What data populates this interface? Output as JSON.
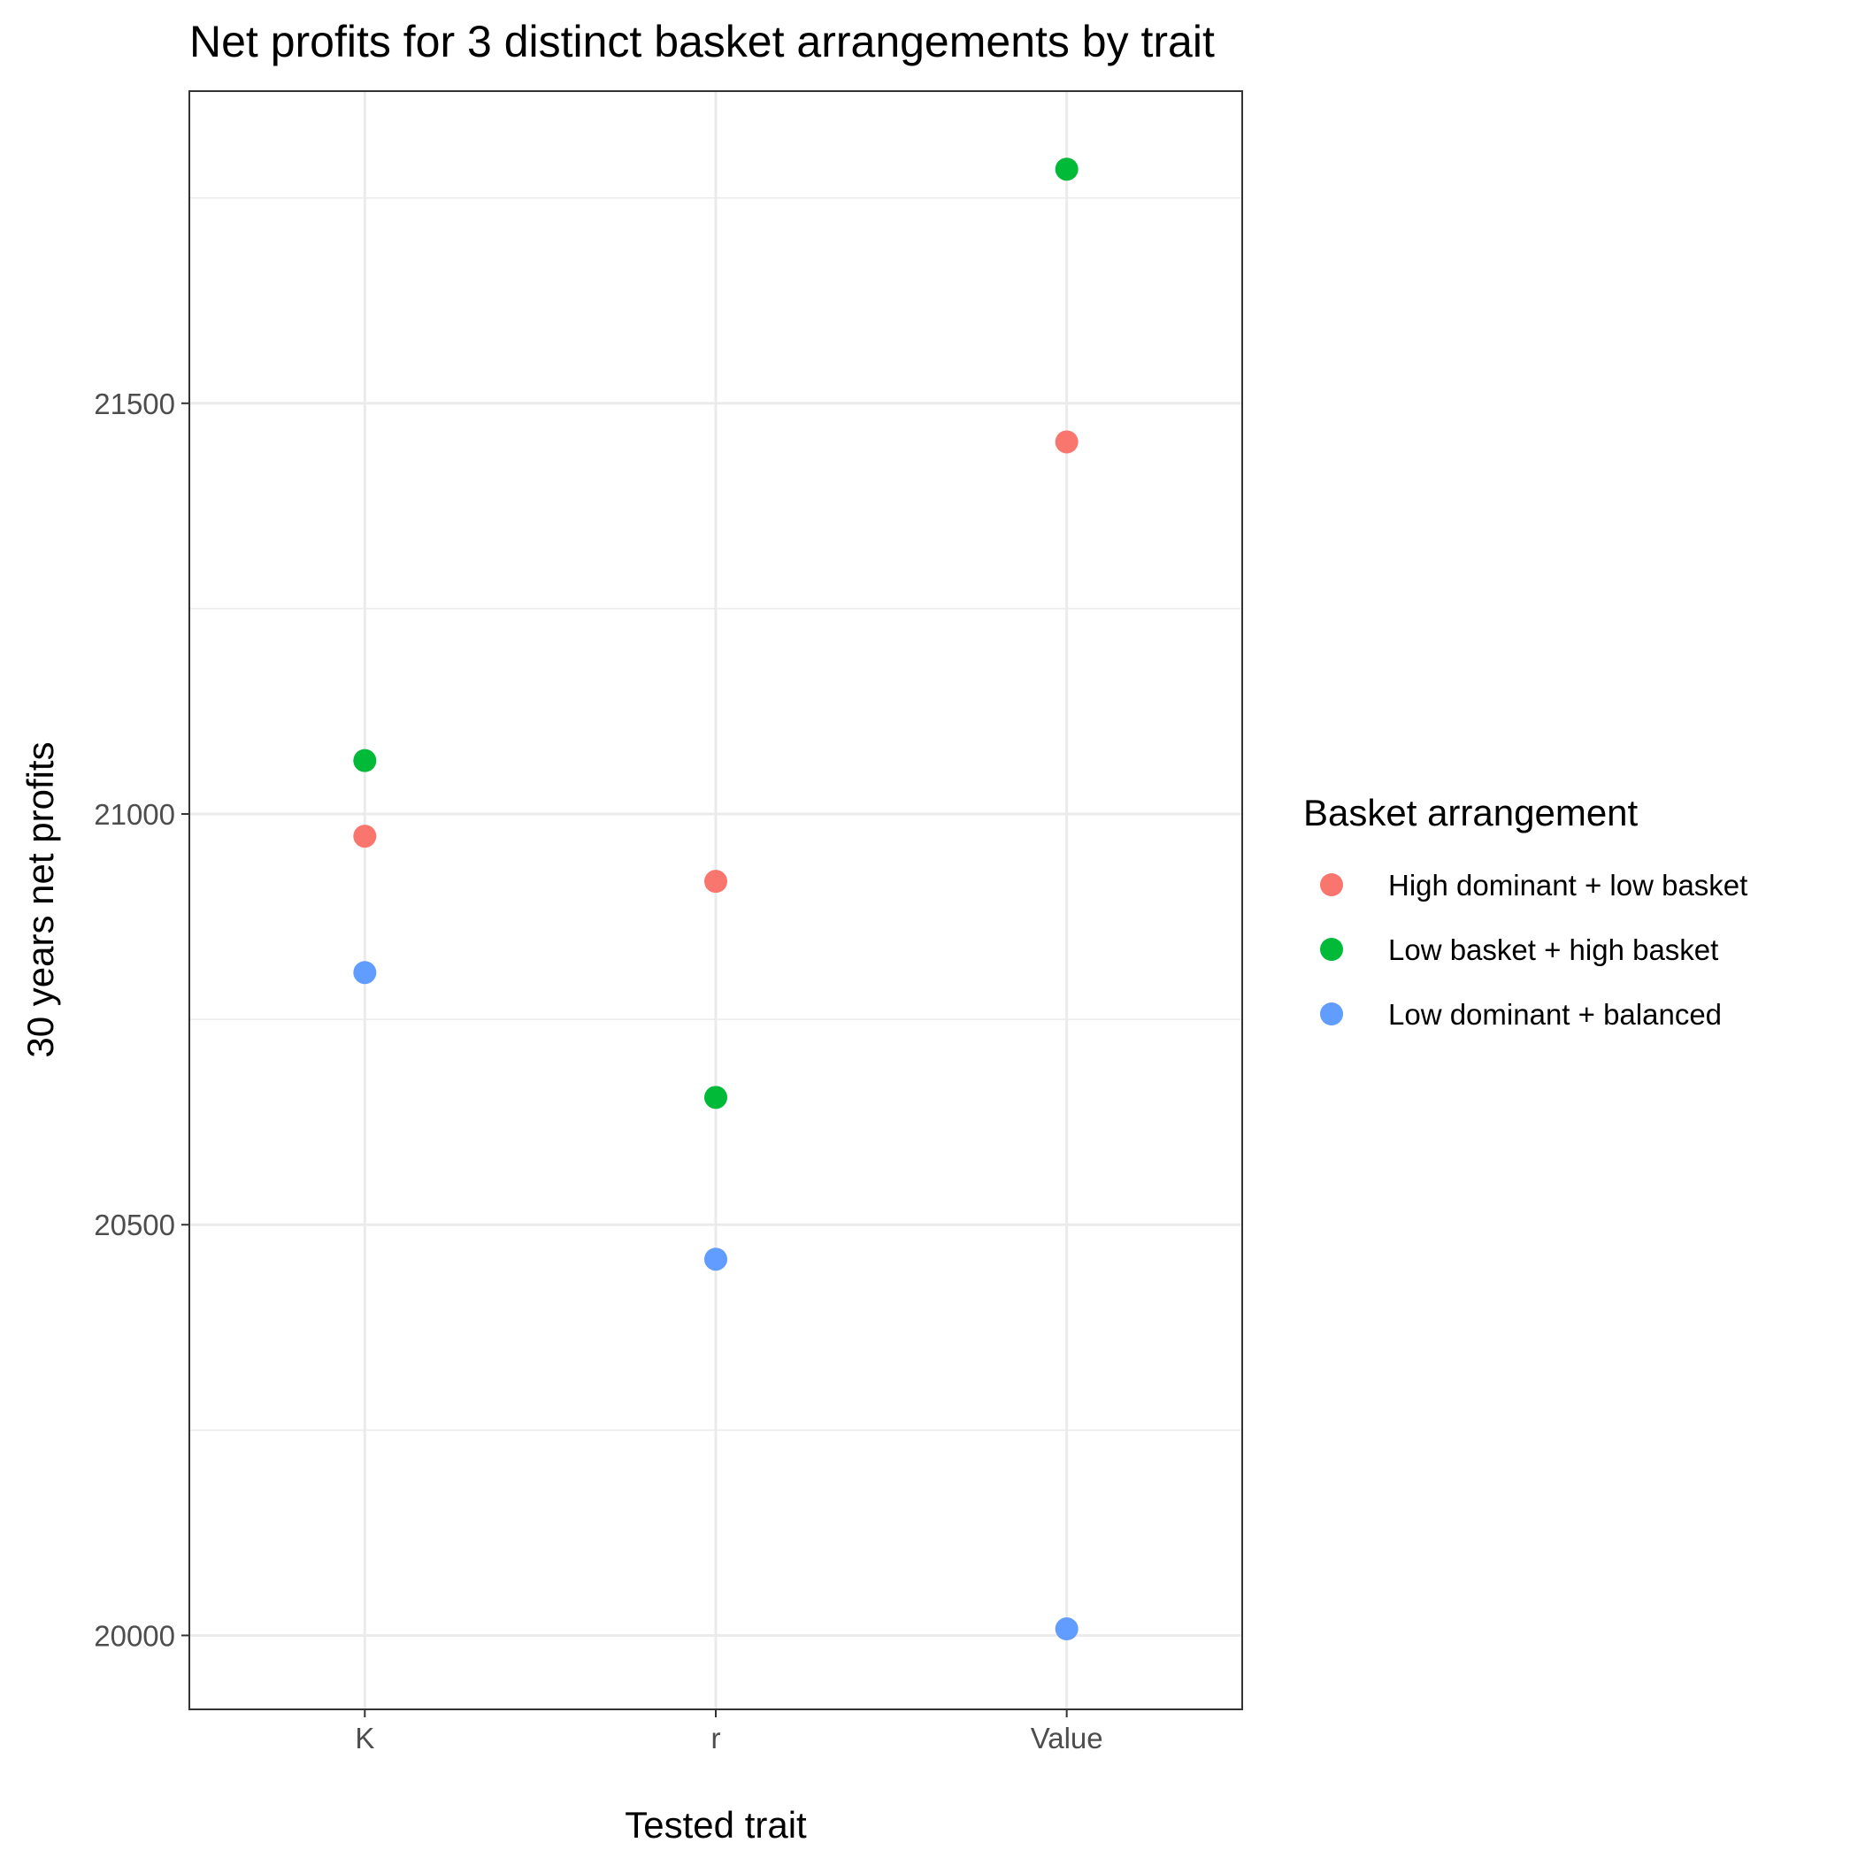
{
  "chart_data": {
    "type": "scatter",
    "title": "Net profits for 3 distinct basket arrangements by trait",
    "xlabel": "Tested trait",
    "ylabel": "30 years net profits",
    "categories": [
      "K",
      "r",
      "Value"
    ],
    "ylim": [
      19910,
      21880
    ],
    "yticks": [
      20000,
      20500,
      21000,
      21500
    ],
    "grid": true,
    "legend": {
      "title": "Basket arrangement",
      "placement": "right"
    },
    "series": [
      {
        "name": "High dominant + low basket",
        "color": "#F8766D",
        "values": [
          20973,
          20918,
          21453
        ]
      },
      {
        "name": "Low basket + high basket",
        "color": "#00BA38",
        "values": [
          21065,
          20655,
          21785
        ]
      },
      {
        "name": "Low dominant + balanced",
        "color": "#619CFF",
        "values": [
          20807,
          20458,
          20008
        ]
      }
    ]
  }
}
